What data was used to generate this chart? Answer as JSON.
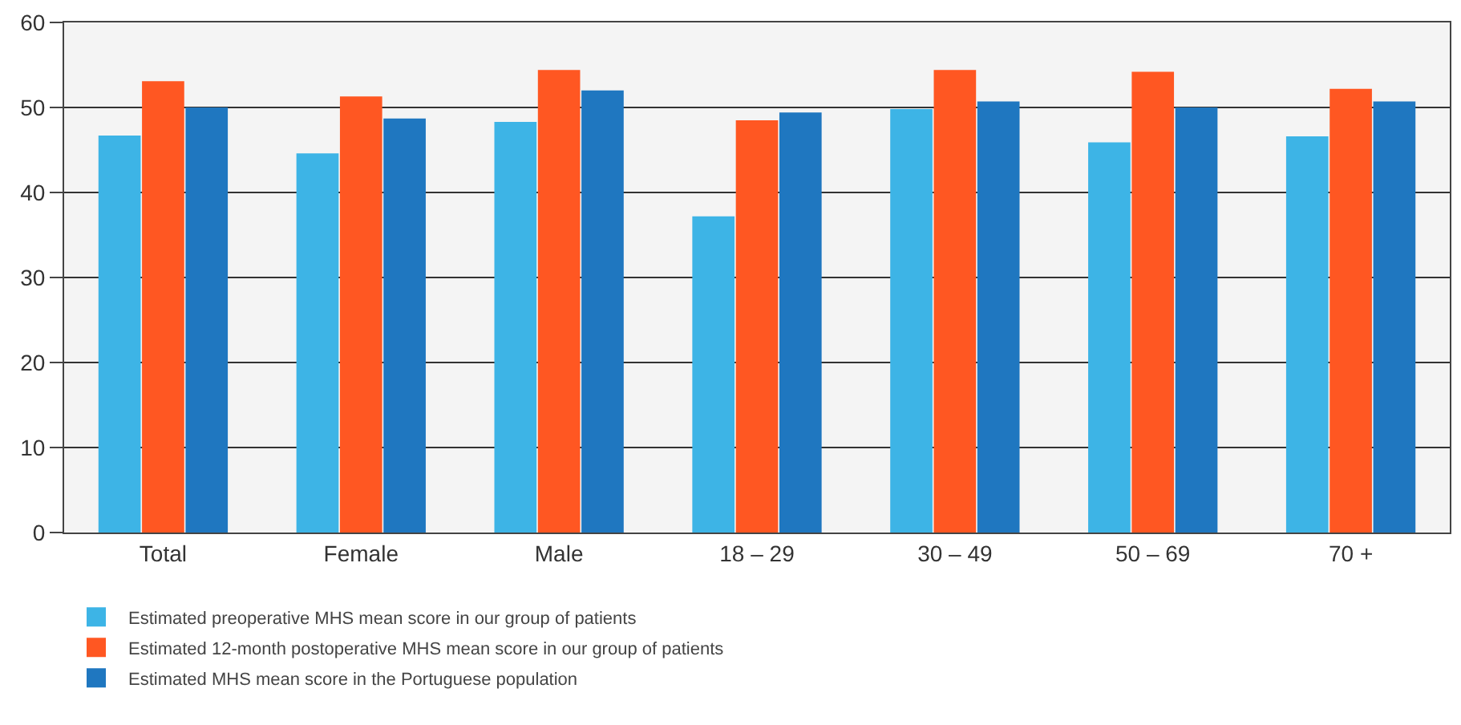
{
  "chart_data": {
    "type": "bar",
    "categories": [
      "Total",
      "Female",
      "Male",
      "18 – 29",
      "30 – 49",
      "50 – 69",
      "70 +"
    ],
    "series": [
      {
        "name": "Estimated preoperative MHS mean score in our group of patients",
        "color": "#3db4e6",
        "values": [
          46.7,
          44.6,
          48.3,
          37.2,
          49.8,
          45.9,
          46.6
        ]
      },
      {
        "name": "Estimated 12-month postoperative MHS mean score in our group of patients",
        "color": "#ff5722",
        "values": [
          53.1,
          51.3,
          54.4,
          48.5,
          54.4,
          54.2,
          52.2
        ]
      },
      {
        "name": "Estimated MHS mean score in the Portuguese population",
        "color": "#1f77c0",
        "values": [
          50.0,
          48.7,
          52.0,
          49.4,
          50.7,
          50.0,
          50.7
        ]
      }
    ],
    "ylim": [
      0,
      60
    ],
    "yticks": [
      0,
      10,
      20,
      30,
      40,
      50,
      60
    ],
    "grid": "y",
    "legend": "bottom left"
  }
}
